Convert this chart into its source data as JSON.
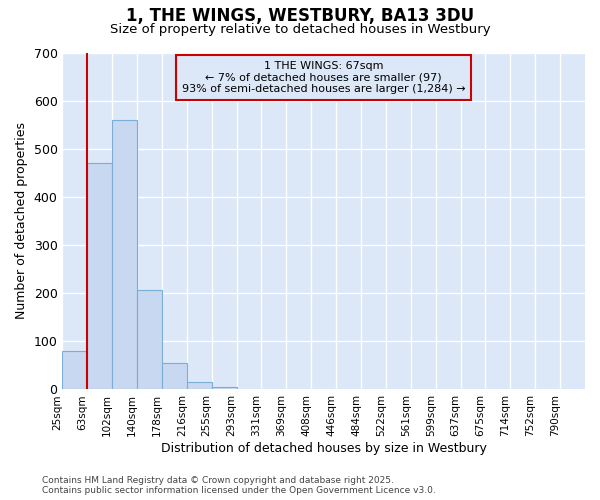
{
  "title": "1, THE WINGS, WESTBURY, BA13 3DU",
  "subtitle": "Size of property relative to detached houses in Westbury",
  "xlabel": "Distribution of detached houses by size in Westbury",
  "ylabel": "Number of detached properties",
  "footer": "Contains HM Land Registry data © Crown copyright and database right 2025.\nContains public sector information licensed under the Open Government Licence v3.0.",
  "categories": [
    "25sqm",
    "63sqm",
    "102sqm",
    "140sqm",
    "178sqm",
    "216sqm",
    "255sqm",
    "293sqm",
    "331sqm",
    "369sqm",
    "408sqm",
    "446sqm",
    "484sqm",
    "522sqm",
    "561sqm",
    "599sqm",
    "637sqm",
    "675sqm",
    "714sqm",
    "752sqm",
    "790sqm"
  ],
  "bar_values": [
    80,
    470,
    560,
    207,
    55,
    15,
    5,
    1,
    1,
    0,
    0,
    0,
    0,
    0,
    0,
    0,
    0,
    0,
    0,
    0,
    0
  ],
  "bar_color": "#c8d8f0",
  "bar_edgecolor": "#7aaed6",
  "plot_bg_color": "#dce8f8",
  "fig_bg_color": "#ffffff",
  "grid_color": "#ffffff",
  "annotation_text": "1 THE WINGS: 67sqm\n← 7% of detached houses are smaller (97)\n93% of semi-detached houses are larger (1,284) →",
  "property_line_color": "#cc0000",
  "annotation_box_edgecolor": "#cc0000",
  "ylim": [
    0,
    700
  ],
  "yticks": [
    0,
    100,
    200,
    300,
    400,
    500,
    600,
    700
  ]
}
